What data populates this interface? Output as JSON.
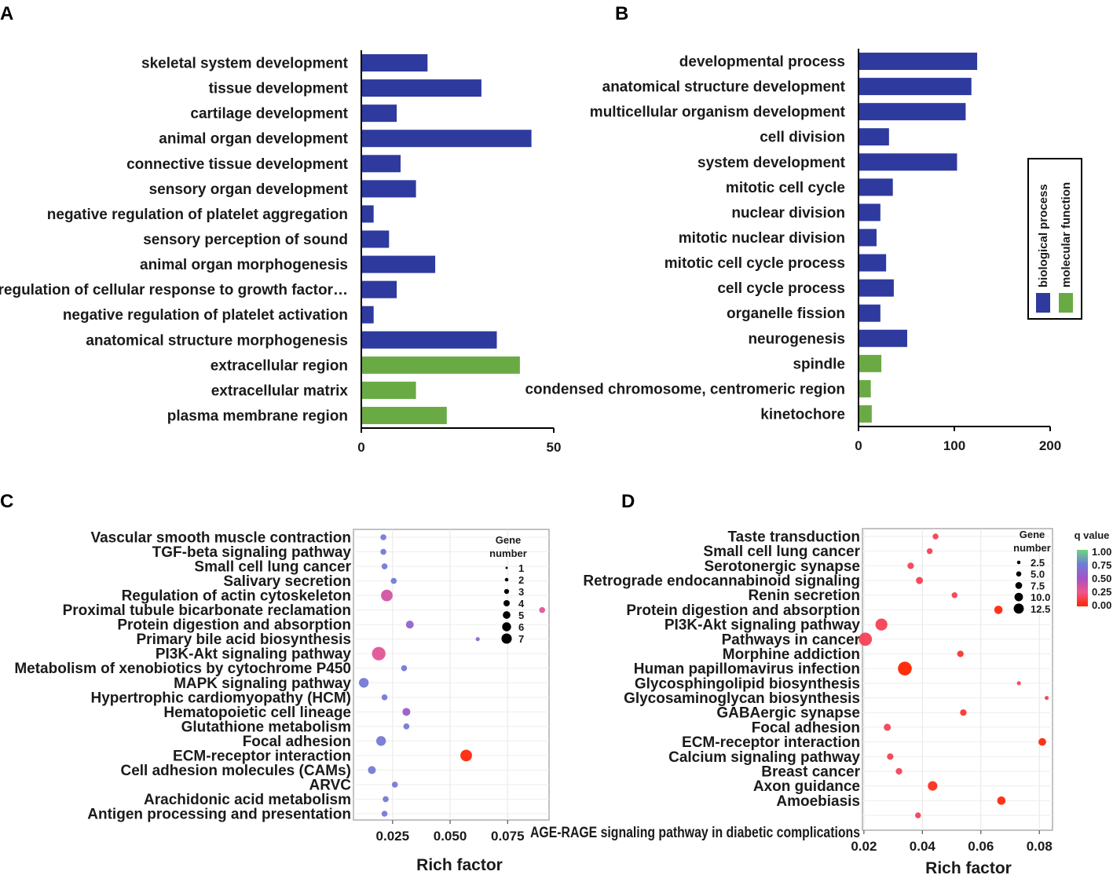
{
  "colors": {
    "bp": "#2e3a9e",
    "mf": "#6aaa44",
    "q_scale": [
      "#ff2a00",
      "#f07a2a",
      "#cc4fc0",
      "#7f58c4",
      "#4fb87f",
      "#7dd67a"
    ]
  },
  "chart_data": [
    {
      "id": "A",
      "panel_label": "A",
      "type": "bar",
      "orientation": "horizontal",
      "categories": [
        "skeletal system development",
        "tissue development",
        "cartilage development",
        "animal organ development",
        "connective tissue development",
        "sensory organ development",
        "negative regulation of platelet aggregation",
        "sensory perception of sound",
        "animal organ morphogenesis",
        "regulation of cellular response to growth factor…",
        "negative regulation of platelet activation",
        "anatomical structure morphogenesis",
        "extracellular region",
        "extracellular matrix",
        "plasma membrane region"
      ],
      "values": [
        17,
        31,
        9,
        44,
        10,
        14,
        3,
        7,
        19,
        9,
        3,
        35,
        41,
        14,
        22
      ],
      "groups": [
        "bp",
        "bp",
        "bp",
        "bp",
        "bp",
        "bp",
        "bp",
        "bp",
        "bp",
        "bp",
        "bp",
        "bp",
        "mf",
        "mf",
        "mf"
      ],
      "xlim": [
        0,
        50
      ],
      "xticks": [
        0,
        50
      ],
      "tick_labels": [
        "0",
        "50"
      ]
    },
    {
      "id": "B",
      "panel_label": "B",
      "type": "bar",
      "orientation": "horizontal",
      "categories": [
        "developmental process",
        "anatomical structure development",
        "multicellular organism development",
        "cell division",
        "system development",
        "mitotic cell cycle",
        "nuclear division",
        "mitotic nuclear division",
        "mitotic cell cycle process",
        "cell cycle process",
        "organelle fission",
        "neurogenesis",
        "spindle",
        "condensed chromosome, centromeric region",
        "kinetochore"
      ],
      "values": [
        123,
        117,
        111,
        31,
        102,
        35,
        22,
        18,
        28,
        36,
        22,
        50,
        23,
        12,
        13
      ],
      "groups": [
        "bp",
        "bp",
        "bp",
        "bp",
        "bp",
        "bp",
        "bp",
        "bp",
        "bp",
        "bp",
        "bp",
        "bp",
        "mf",
        "mf",
        "mf"
      ],
      "xlim": [
        0,
        200
      ],
      "xticks": [
        0,
        100,
        200
      ],
      "tick_labels": [
        "0",
        "100",
        "200"
      ],
      "legend": {
        "position": "right",
        "items": [
          {
            "label": "biological process",
            "group": "bp"
          },
          {
            "label": "molecular function",
            "group": "mf"
          }
        ]
      }
    },
    {
      "id": "C",
      "panel_label": "C",
      "type": "scatter",
      "categories": [
        "Vascular smooth muscle contraction",
        "TGF-beta signaling pathway",
        "Small cell lung cancer",
        "Salivary secretion",
        "Regulation of actin cytoskeleton",
        "Proximal tubule bicarbonate reclamation",
        "Protein digestion and absorption",
        "Primary bile acid biosynthesis",
        "PI3K-Akt signaling pathway",
        "Metabolism of xenobiotics by cytochrome P450",
        "MAPK signaling pathway",
        "Hypertrophic cardiomyopathy (HCM)",
        "Hematopoietic cell lineage",
        "Glutathione metabolism",
        "Focal adhesion",
        "ECM-receptor interaction",
        "Cell adhesion molecules (CAMs)",
        "ARVC",
        "Arachidonic acid metabolism",
        "Antigen processing and presentation"
      ],
      "x": [
        0.021,
        0.021,
        0.0215,
        0.0255,
        0.0225,
        0.09,
        0.0325,
        0.062,
        0.019,
        0.03,
        0.0125,
        0.0215,
        0.031,
        0.031,
        0.02,
        0.057,
        0.016,
        0.026,
        0.022,
        0.0215
      ],
      "size": [
        2,
        2,
        2,
        2,
        5,
        2,
        3,
        1,
        6,
        2,
        4,
        2,
        3,
        2,
        4,
        5,
        3,
        2,
        2,
        2
      ],
      "q": [
        0.72,
        0.72,
        0.72,
        0.72,
        0.35,
        0.3,
        0.6,
        0.6,
        0.3,
        0.72,
        0.72,
        0.72,
        0.55,
        0.72,
        0.72,
        0.02,
        0.72,
        0.72,
        0.72,
        0.72
      ],
      "xlim": [
        0.008,
        0.093
      ],
      "xticks": [
        0.025,
        0.05,
        0.075
      ],
      "tick_labels": [
        "0.025",
        "0.050",
        "0.075"
      ],
      "xlabel": "Rich factor",
      "legend": {
        "title_lines": [
          "Gene",
          "number"
        ],
        "items": [
          {
            "label": "1",
            "value": 1
          },
          {
            "label": "2",
            "value": 2
          },
          {
            "label": "3",
            "value": 3
          },
          {
            "label": "4",
            "value": 4
          },
          {
            "label": "5",
            "value": 5
          },
          {
            "label": "6",
            "value": 6
          },
          {
            "label": "7",
            "value": 7
          }
        ]
      }
    },
    {
      "id": "D",
      "panel_label": "D",
      "type": "scatter",
      "categories": [
        "Taste transduction",
        "Small cell lung cancer",
        "Serotonergic synapse",
        "Retrograde endocannabinoid signaling",
        "Renin secretion",
        "Protein digestion and absorption",
        "PI3K-Akt signaling pathway",
        "Pathways in cancer",
        "Morphine addiction",
        "Human papillomavirus infection",
        "Glycosphingolipid biosynthesis",
        "Glycosaminoglycan biosynthesis",
        "GABAergic synapse",
        "Focal adhesion",
        "ECM-receptor interaction",
        "Calcium signaling pathway",
        "Breast cancer",
        "Axon guidance",
        "Amoebiasis",
        "AGE-RAGE signaling pathway in diabetic complications"
      ],
      "x": [
        0.0445,
        0.0425,
        0.036,
        0.039,
        0.051,
        0.066,
        0.026,
        0.0205,
        0.053,
        0.034,
        0.073,
        0.0825,
        0.054,
        0.028,
        0.081,
        0.029,
        0.032,
        0.0435,
        0.067,
        0.0385
      ],
      "size": [
        3,
        3,
        3.5,
        4,
        3,
        5,
        8,
        9,
        3.5,
        9.5,
        1.5,
        1.5,
        3.5,
        4,
        4.5,
        3.5,
        3.5,
        6,
        5,
        3
      ],
      "q": [
        0.15,
        0.15,
        0.15,
        0.15,
        0.15,
        0.02,
        0.15,
        0.15,
        0.08,
        0.0,
        0.15,
        0.15,
        0.08,
        0.15,
        0.02,
        0.15,
        0.15,
        0.05,
        0.02,
        0.15
      ],
      "xlim": [
        0.0195,
        0.0845
      ],
      "xticks": [
        0.02,
        0.04,
        0.06,
        0.08
      ],
      "tick_labels": [
        "0.02",
        "0.04",
        "0.06",
        "0.08"
      ],
      "xlabel": "Rich factor",
      "legend": {
        "title_lines": [
          "Gene",
          "number"
        ],
        "items": [
          {
            "label": "2.5",
            "value": 2.5
          },
          {
            "label": "5.0",
            "value": 5.0
          },
          {
            "label": "7.5",
            "value": 7.5
          },
          {
            "label": "10.0",
            "value": 10.0
          },
          {
            "label": "12.5",
            "value": 12.5
          }
        ]
      },
      "colorbar": {
        "title": "q value",
        "ticks": [
          "1.00",
          "0.75",
          "0.50",
          "0.25",
          "0.00"
        ]
      }
    }
  ]
}
